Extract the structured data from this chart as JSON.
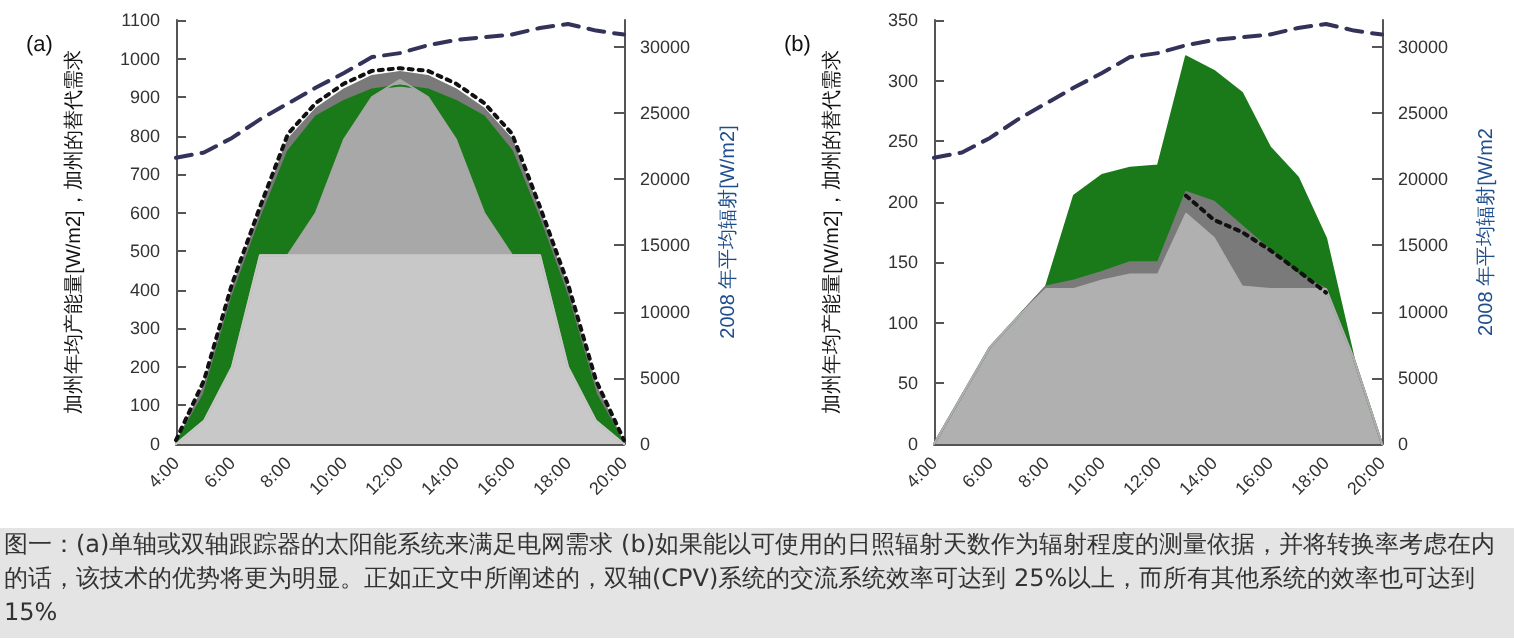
{
  "chart_data": [
    {
      "type": "area",
      "title": "(a)",
      "ylabel": "加州年均产能量[W/m2]，加州的替代需求",
      "y2label": "2008 年平均辐射[W/m2]",
      "x": [
        4,
        5,
        6,
        7,
        8,
        9,
        10,
        11,
        12,
        13,
        14,
        15,
        16,
        17,
        18,
        19,
        20
      ],
      "xlim": [
        4,
        20
      ],
      "xticks": [
        {
          "value": 4,
          "label": "4:00"
        },
        {
          "value": 6,
          "label": "6:00"
        },
        {
          "value": 8,
          "label": "8:00"
        },
        {
          "value": 10,
          "label": "10:00"
        },
        {
          "value": 12,
          "label": "12:00"
        },
        {
          "value": 14,
          "label": "14:00"
        },
        {
          "value": 16,
          "label": "16:00"
        },
        {
          "value": 18,
          "label": "18:00"
        },
        {
          "value": 20,
          "label": "20:00"
        }
      ],
      "ylim": [
        0,
        1100
      ],
      "yticks": [
        0,
        100,
        200,
        300,
        400,
        500,
        600,
        700,
        800,
        900,
        1000,
        1100
      ],
      "y2lim": [
        0,
        32000
      ],
      "y2ticks": [
        0,
        5000,
        10000,
        15000,
        20000,
        25000,
        30000
      ],
      "grid": false,
      "annotations": [
        "图一：(a)单轴或双轴跟踪器的太阳能系统来满足电网需求 (b)如果能以可使用的日照辐射天数作为辐射程度的测量依据，并将转换率考虑在内的话，该技术的优势将更为明显。正如正文中所阐述的，双轴(CPV)系统的交流系统效率可达到 25%以上，而所有其他系统的效率也可达到 15%"
      ],
      "series": [
        {
          "type": "area",
          "color": "#7a7a7a",
          "values": [
            0,
            150,
            400,
            600,
            790,
            870,
            920,
            955,
            965,
            955,
            920,
            870,
            790,
            600,
            400,
            150,
            0
          ]
        },
        {
          "type": "area",
          "color": "#1a7a1a",
          "values": [
            0,
            130,
            380,
            580,
            760,
            850,
            890,
            920,
            930,
            920,
            890,
            850,
            760,
            580,
            380,
            130,
            0
          ]
        },
        {
          "type": "area",
          "color": "#a8a8a8",
          "values": [
            0,
            60,
            200,
            490,
            490,
            600,
            790,
            900,
            945,
            900,
            790,
            600,
            490,
            490,
            200,
            60,
            0
          ]
        },
        {
          "type": "area",
          "color": "#c8c8c8",
          "values": [
            0,
            60,
            200,
            490,
            490,
            490,
            490,
            490,
            490,
            490,
            490,
            490,
            490,
            490,
            200,
            60,
            0
          ]
        },
        {
          "type": "line",
          "color": "#111111",
          "line_style": "dotted",
          "values": [
            10,
            165,
            415,
            615,
            805,
            885,
            935,
            968,
            975,
            968,
            935,
            885,
            805,
            615,
            415,
            165,
            10
          ]
        },
        {
          "type": "line",
          "color": "#33335a",
          "line_style": "dashed",
          "axis": "y2",
          "values": [
            21600,
            22000,
            23100,
            24500,
            25700,
            26900,
            28000,
            29200,
            29500,
            30100,
            30500,
            30700,
            30900,
            31400,
            31700,
            31200,
            30900
          ]
        }
      ]
    },
    {
      "type": "area",
      "title": "(b)",
      "ylabel": "加州年均产能量[W/m2]，加州的替代需求",
      "y2label": "2008 年平均辐射[W/m2",
      "x": [
        4,
        5,
        6,
        7,
        8,
        9,
        10,
        11,
        12,
        13,
        14,
        15,
        16,
        17,
        18,
        19,
        20
      ],
      "xlim": [
        4,
        20
      ],
      "xticks": [
        {
          "value": 4,
          "label": "4:00"
        },
        {
          "value": 6,
          "label": "6:00"
        },
        {
          "value": 8,
          "label": "8:00"
        },
        {
          "value": 10,
          "label": "10:00"
        },
        {
          "value": 12,
          "label": "12:00"
        },
        {
          "value": 14,
          "label": "14:00"
        },
        {
          "value": 16,
          "label": "16:00"
        },
        {
          "value": 18,
          "label": "18:00"
        },
        {
          "value": 20,
          "label": "20:00"
        }
      ],
      "ylim": [
        0,
        350
      ],
      "yticks": [
        0,
        50,
        100,
        150,
        200,
        250,
        300,
        350
      ],
      "y2lim": [
        0,
        32000
      ],
      "y2ticks": [
        0,
        5000,
        10000,
        15000,
        20000,
        25000,
        30000
      ],
      "grid": false,
      "series": [
        {
          "type": "area",
          "color": "#1a7a1a",
          "values": [
            0,
            40,
            80,
            105,
            130,
            205,
            222,
            228,
            230,
            320,
            308,
            290,
            245,
            220,
            170,
            70,
            0
          ]
        },
        {
          "type": "area",
          "color": "#7a7a7a",
          "values": [
            0,
            40,
            80,
            105,
            130,
            135,
            142,
            150,
            150,
            208,
            200,
            180,
            160,
            140,
            128,
            70,
            0
          ]
        },
        {
          "type": "area",
          "color": "#b0b0b0",
          "values": [
            0,
            40,
            80,
            105,
            128,
            128,
            135,
            140,
            140,
            190,
            170,
            130,
            128,
            128,
            128,
            70,
            0
          ]
        },
        {
          "type": "line",
          "color": "#111111",
          "line_style": "dotted",
          "values": [
            null,
            null,
            null,
            null,
            null,
            null,
            null,
            null,
            null,
            205,
            185,
            175,
            160,
            143,
            125,
            null,
            null
          ]
        },
        {
          "type": "line",
          "color": "#33335a",
          "line_style": "dashed",
          "axis": "y2",
          "values": [
            21600,
            22000,
            23100,
            24500,
            25700,
            26900,
            28000,
            29200,
            29500,
            30100,
            30500,
            30700,
            30900,
            31400,
            31700,
            31200,
            30900
          ]
        }
      ]
    }
  ]
}
